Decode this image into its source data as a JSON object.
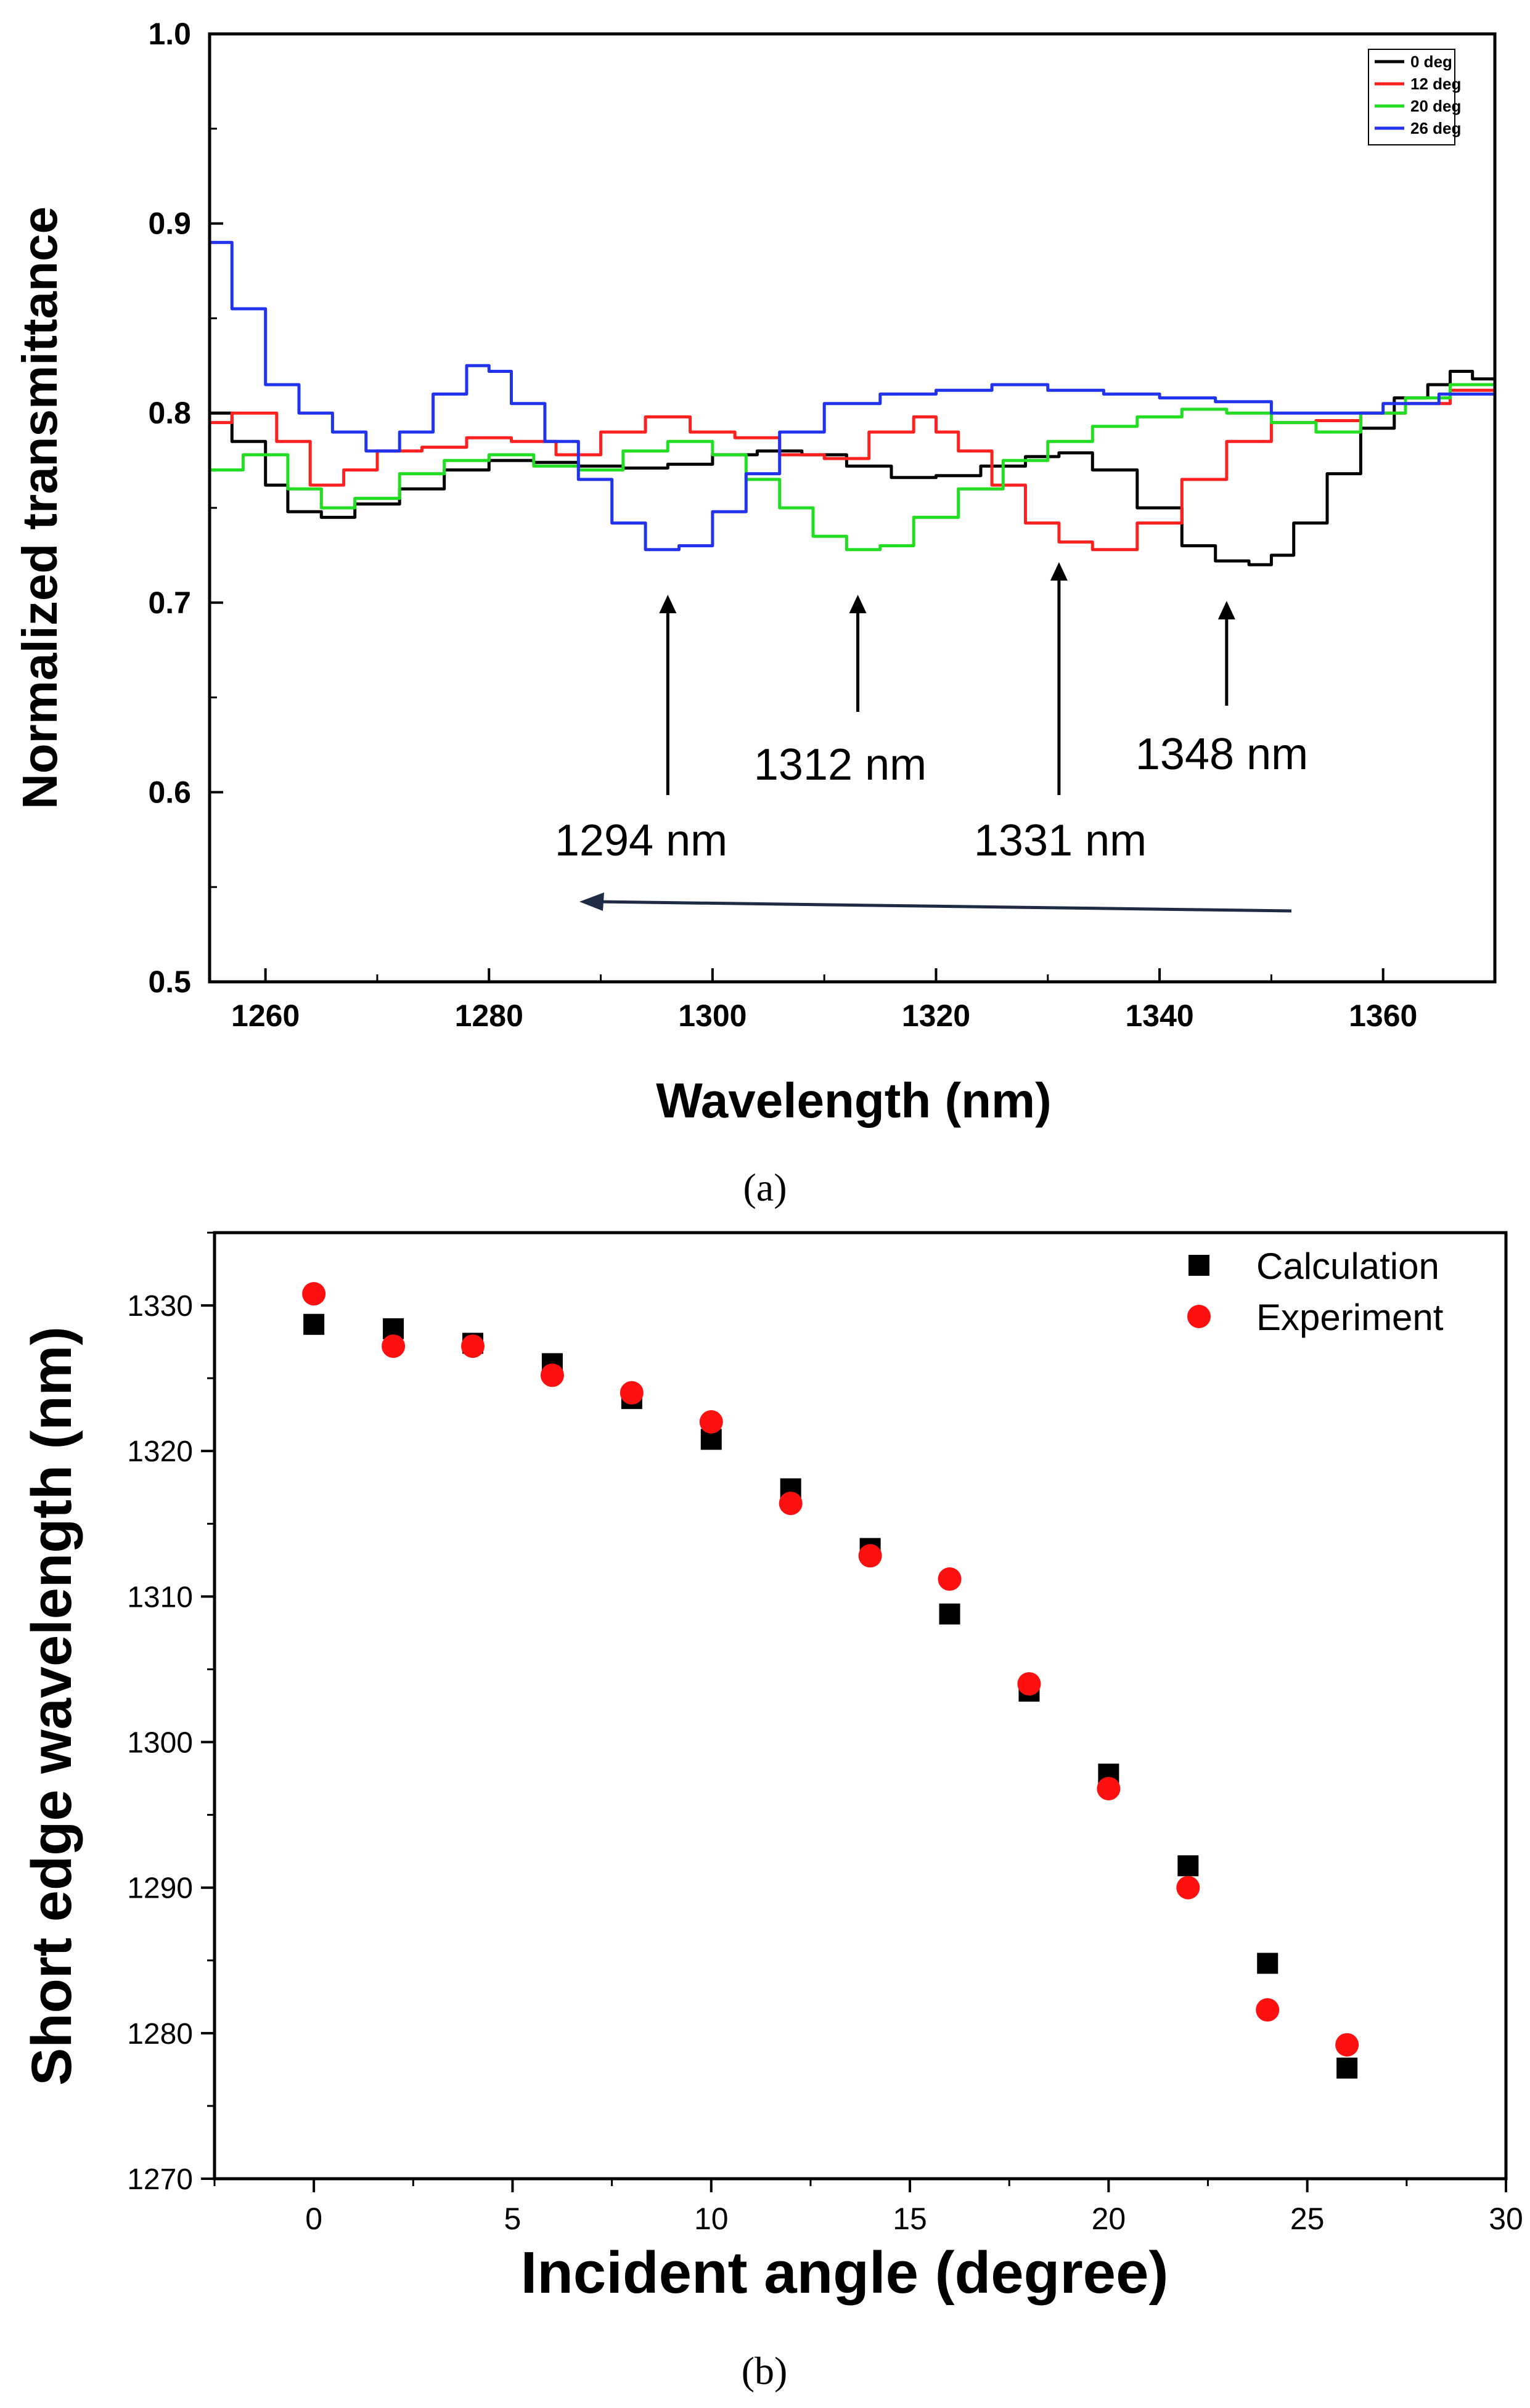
{
  "chart_data": [
    {
      "panel_label": "(a)",
      "type": "line",
      "xlabel": "Wavelength (nm)",
      "ylabel": "Normalized transmittance",
      "xlim": [
        1255,
        1370
      ],
      "ylim": [
        0.5,
        1.0
      ],
      "xticks": [
        1260,
        1280,
        1300,
        1320,
        1340,
        1360
      ],
      "yticks": [
        0.5,
        0.6,
        0.7,
        0.8,
        0.9,
        1.0
      ],
      "legend_position": "top-right",
      "series": [
        {
          "name": "0 deg",
          "color": "#000000",
          "x": [
            1255,
            1257,
            1260,
            1262,
            1265,
            1268,
            1272,
            1276,
            1280,
            1284,
            1288,
            1292,
            1296,
            1300,
            1304,
            1308,
            1312,
            1316,
            1320,
            1324,
            1328,
            1331,
            1334,
            1338,
            1342,
            1345,
            1348,
            1350,
            1352,
            1355,
            1358,
            1361,
            1364,
            1366,
            1368,
            1370
          ],
          "y": [
            0.8,
            0.785,
            0.762,
            0.748,
            0.745,
            0.752,
            0.76,
            0.77,
            0.775,
            0.774,
            0.772,
            0.771,
            0.773,
            0.778,
            0.78,
            0.778,
            0.772,
            0.766,
            0.767,
            0.772,
            0.777,
            0.779,
            0.77,
            0.75,
            0.73,
            0.722,
            0.72,
            0.725,
            0.742,
            0.768,
            0.792,
            0.808,
            0.815,
            0.822,
            0.818,
            0.77
          ]
        },
        {
          "name": "12 deg",
          "color": "#ff2020",
          "x": [
            1255,
            1257,
            1259,
            1261,
            1264,
            1267,
            1270,
            1274,
            1278,
            1282,
            1286,
            1290,
            1294,
            1298,
            1302,
            1306,
            1310,
            1314,
            1318,
            1320,
            1322,
            1325,
            1328,
            1331,
            1334,
            1338,
            1342,
            1346,
            1350,
            1354,
            1358,
            1362,
            1366,
            1370
          ],
          "y": [
            0.795,
            0.8,
            0.8,
            0.785,
            0.762,
            0.77,
            0.78,
            0.782,
            0.787,
            0.785,
            0.778,
            0.79,
            0.798,
            0.79,
            0.787,
            0.778,
            0.776,
            0.79,
            0.798,
            0.79,
            0.78,
            0.762,
            0.742,
            0.732,
            0.728,
            0.742,
            0.765,
            0.785,
            0.795,
            0.796,
            0.8,
            0.805,
            0.812,
            0.79
          ]
        },
        {
          "name": "20 deg",
          "color": "#22dd22",
          "x": [
            1255,
            1258,
            1262,
            1265,
            1268,
            1272,
            1276,
            1280,
            1284,
            1288,
            1292,
            1296,
            1300,
            1303,
            1306,
            1309,
            1312,
            1315,
            1318,
            1322,
            1326,
            1330,
            1334,
            1338,
            1342,
            1346,
            1350,
            1354,
            1358,
            1362,
            1366,
            1370
          ],
          "y": [
            0.77,
            0.778,
            0.76,
            0.75,
            0.755,
            0.768,
            0.775,
            0.778,
            0.772,
            0.77,
            0.78,
            0.785,
            0.778,
            0.765,
            0.75,
            0.735,
            0.728,
            0.73,
            0.745,
            0.76,
            0.775,
            0.785,
            0.793,
            0.798,
            0.802,
            0.8,
            0.795,
            0.79,
            0.8,
            0.808,
            0.815,
            0.8
          ]
        },
        {
          "name": "26 deg",
          "color": "#2233ee",
          "x": [
            1255,
            1257,
            1260,
            1263,
            1266,
            1269,
            1272,
            1275,
            1278,
            1280,
            1282,
            1285,
            1288,
            1291,
            1294,
            1297,
            1300,
            1303,
            1306,
            1310,
            1315,
            1320,
            1325,
            1330,
            1335,
            1340,
            1345,
            1350,
            1355,
            1360,
            1365,
            1370
          ],
          "y": [
            0.89,
            0.855,
            0.815,
            0.8,
            0.79,
            0.78,
            0.79,
            0.81,
            0.825,
            0.822,
            0.805,
            0.785,
            0.765,
            0.742,
            0.728,
            0.73,
            0.748,
            0.768,
            0.79,
            0.805,
            0.81,
            0.812,
            0.815,
            0.812,
            0.81,
            0.808,
            0.806,
            0.8,
            0.8,
            0.805,
            0.81,
            0.79
          ]
        }
      ],
      "annotations": [
        {
          "text": "1294 nm",
          "x": 1296
        },
        {
          "text": "1312 nm",
          "x": 1313
        },
        {
          "text": "1331 nm",
          "x": 1331
        },
        {
          "text": "1348 nm",
          "x": 1346
        }
      ]
    },
    {
      "panel_label": "(b)",
      "type": "scatter",
      "xlabel": "Incident angle (degree)",
      "ylabel": "Short edge wavelength (nm)",
      "xlim": [
        -2.5,
        30
      ],
      "ylim": [
        1270,
        1335
      ],
      "xticks": [
        0,
        5,
        10,
        15,
        20,
        25,
        30
      ],
      "yticks": [
        1270,
        1280,
        1290,
        1300,
        1310,
        1320,
        1330
      ],
      "legend_position": "top-right",
      "series": [
        {
          "name": "Calculation",
          "marker": "square",
          "color": "#000000",
          "x": [
            0,
            2,
            4,
            6,
            8,
            10,
            12,
            14,
            16,
            18,
            20,
            22,
            24,
            26
          ],
          "y": [
            1328.7,
            1328.4,
            1327.4,
            1326.0,
            1323.6,
            1320.8,
            1317.4,
            1313.3,
            1308.8,
            1303.5,
            1297.8,
            1291.5,
            1284.8,
            1277.6
          ]
        },
        {
          "name": "Experiment",
          "marker": "circle",
          "color": "#ff1010",
          "x": [
            0,
            2,
            4,
            6,
            8,
            10,
            12,
            14,
            16,
            18,
            20,
            22,
            24,
            26
          ],
          "y": [
            1330.8,
            1327.2,
            1327.2,
            1325.2,
            1324.0,
            1322.0,
            1316.4,
            1312.8,
            1311.2,
            1304.0,
            1296.8,
            1290.0,
            1281.6,
            1279.2
          ]
        }
      ]
    }
  ]
}
